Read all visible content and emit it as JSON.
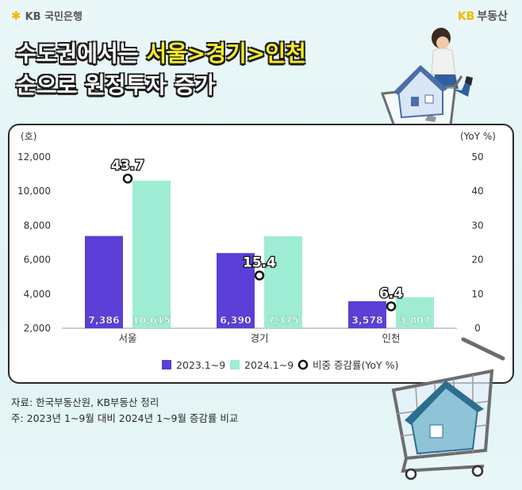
{
  "branding": {
    "bank_logo": "KB 국민은행",
    "brand_kb": "KB",
    "brand_name": "부동산"
  },
  "headline": {
    "line1_prefix": "수도권에서는 ",
    "line1_highlight": "서울>경기>인천",
    "line2": "순으로 원정투자 증가"
  },
  "chart_data": {
    "type": "bar",
    "ylabel_left": "(호)",
    "ylabel_right": "(YoY %)",
    "categories": [
      "서울",
      "경기",
      "인천"
    ],
    "ylim": [
      2000,
      12000
    ],
    "yticks": [
      "2,000",
      "4,000",
      "6,000",
      "8,000",
      "10,000",
      "12,000"
    ],
    "y2lim": [
      0,
      50
    ],
    "y2ticks": [
      "0",
      "10",
      "20",
      "30",
      "40",
      "50"
    ],
    "series": [
      {
        "name": "2023.1~9",
        "color": "#5b3fd6",
        "values": [
          7386,
          6390,
          3578
        ],
        "labels": [
          "7,386",
          "6,390",
          "3,578"
        ]
      },
      {
        "name": "2024.1~9",
        "color": "#9eecd3",
        "values": [
          10615,
          7375,
          3807
        ],
        "labels": [
          "10,615",
          "7,375",
          "3,807"
        ]
      }
    ],
    "yoy": {
      "name": "비중 증감률(YoY %)",
      "values": [
        43.7,
        15.4,
        6.4
      ],
      "labels": [
        "43.7",
        "15.4",
        "6.4"
      ]
    },
    "grid": true
  },
  "notes": {
    "source": "자료: 한국부동산원, KB부동산 정리",
    "footnote": "주: 2023년 1~9월 대비 2024년 1~9월 증감률 비교"
  },
  "colors": {
    "title_highlight": "#f6ea2b",
    "kb_yellow": "#f2b705",
    "bar_2023": "#5b3fd6",
    "bar_2024": "#9eecd3"
  }
}
